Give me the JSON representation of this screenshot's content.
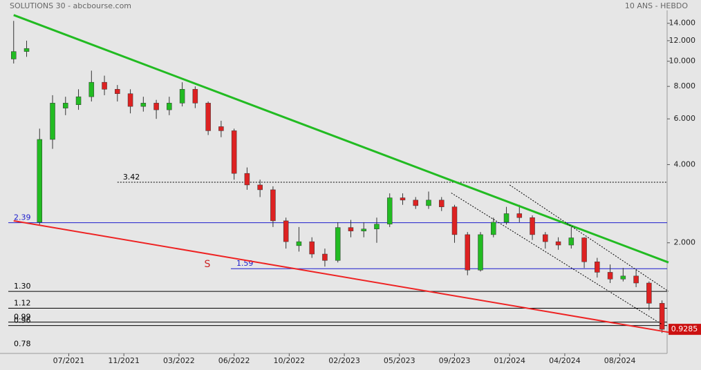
{
  "chart_data": {
    "type": "candlestick",
    "title": "SOLUTIONS 30 - abcbourse.com",
    "subtitle": "10 ANS - HEBDO",
    "log_scale": true,
    "ylim": [
      0.75,
      15.7
    ],
    "xlim": [
      -4,
      202
    ],
    "yticks": [
      {
        "value": 14,
        "label": "14.000"
      },
      {
        "value": 12,
        "label": "12.000"
      },
      {
        "value": 10,
        "label": "10.000"
      },
      {
        "value": 8,
        "label": "8.000"
      },
      {
        "value": 6,
        "label": "6.000"
      },
      {
        "value": 4,
        "label": "4.000"
      },
      {
        "value": 2,
        "label": "2.000"
      }
    ],
    "xticks": [
      {
        "value": 17,
        "label": "07/2021"
      },
      {
        "value": 34,
        "label": "11/2021"
      },
      {
        "value": 51,
        "label": "03/2022"
      },
      {
        "value": 68,
        "label": "06/2022"
      },
      {
        "value": 85,
        "label": "10/2022"
      },
      {
        "value": 102,
        "label": "02/2023"
      },
      {
        "value": 119,
        "label": "05/2023"
      },
      {
        "value": 136,
        "label": "09/2023"
      },
      {
        "value": 153,
        "label": "01/2024"
      },
      {
        "value": 170,
        "label": "04/2024"
      },
      {
        "value": 187,
        "label": "08/2024"
      }
    ],
    "x": [
      0,
      4,
      8,
      12,
      16,
      20,
      24,
      28,
      32,
      36,
      40,
      44,
      48,
      52,
      56,
      60,
      64,
      68,
      72,
      76,
      80,
      84,
      88,
      92,
      96,
      100,
      104,
      108,
      112,
      116,
      120,
      124,
      128,
      132,
      136,
      140,
      144,
      148,
      152,
      156,
      160,
      164,
      168,
      172,
      176,
      180,
      184,
      188,
      192,
      196,
      200
    ],
    "open": [
      10.2,
      10.9,
      2.4,
      5.0,
      6.6,
      6.8,
      7.3,
      8.3,
      7.8,
      7.5,
      6.7,
      6.9,
      6.5,
      6.9,
      7.8,
      6.9,
      5.6,
      5.4,
      3.7,
      3.34,
      3.2,
      2.43,
      1.95,
      2.02,
      1.81,
      1.71,
      2.29,
      2.22,
      2.26,
      2.36,
      2.98,
      2.92,
      2.78,
      2.92,
      2.75,
      2.15,
      1.57,
      2.15,
      2.4,
      2.59,
      2.5,
      2.15,
      2.02,
      1.96,
      2.09,
      1.69,
      1.54,
      1.45,
      1.49,
      1.4,
      1.17
    ],
    "high": [
      14.3,
      12.0,
      5.5,
      7.4,
      7.3,
      7.8,
      9.2,
      8.8,
      8.1,
      7.8,
      7.3,
      7.1,
      7.3,
      8.3,
      8.0,
      7.0,
      5.9,
      5.5,
      3.9,
      3.5,
      3.3,
      2.5,
      2.3,
      2.1,
      1.9,
      2.4,
      2.45,
      2.4,
      2.5,
      3.1,
      3.1,
      3.0,
      3.15,
      3.0,
      2.8,
      2.2,
      2.2,
      2.5,
      2.75,
      2.8,
      2.55,
      2.2,
      2.1,
      2.3,
      2.1,
      1.75,
      1.65,
      1.6,
      1.58,
      1.42,
      1.2
    ],
    "low": [
      9.8,
      10.4,
      2.35,
      4.6,
      6.2,
      6.5,
      7.0,
      7.4,
      7.0,
      6.3,
      6.4,
      6.0,
      6.2,
      6.7,
      6.6,
      5.2,
      5.1,
      3.5,
      3.2,
      3.0,
      2.3,
      1.9,
      1.85,
      1.75,
      1.62,
      1.68,
      2.1,
      2.1,
      2.0,
      2.3,
      2.8,
      2.7,
      2.7,
      2.65,
      2.0,
      1.5,
      1.55,
      2.1,
      2.35,
      2.4,
      2.05,
      1.9,
      1.88,
      1.9,
      1.6,
      1.47,
      1.4,
      1.42,
      1.35,
      1.1,
      0.9
    ],
    "close": [
      10.9,
      11.2,
      5.0,
      6.9,
      6.9,
      7.3,
      8.3,
      7.8,
      7.5,
      6.7,
      6.9,
      6.5,
      6.9,
      7.8,
      6.9,
      5.4,
      5.4,
      3.7,
      3.34,
      3.2,
      2.43,
      2.02,
      2.02,
      1.81,
      1.71,
      2.29,
      2.22,
      2.26,
      2.36,
      2.98,
      2.92,
      2.78,
      2.92,
      2.75,
      2.15,
      1.57,
      2.15,
      2.4,
      2.59,
      2.5,
      2.15,
      2.02,
      1.96,
      2.09,
      1.69,
      1.54,
      1.45,
      1.49,
      1.4,
      1.17,
      0.9285
    ],
    "up_color": "#22bb22",
    "down_color": "#dd2222",
    "levels": [
      {
        "value": 3.42,
        "label": "3.42",
        "color": "#000000",
        "style": "dotted",
        "from": 32
      },
      {
        "value": 2.39,
        "label": "2.39",
        "color": "#1a1acc",
        "style": "solid",
        "from": -4
      },
      {
        "value": 1.59,
        "label": "1.59",
        "color": "#1a1acc",
        "style": "solid",
        "from": 67
      },
      {
        "value": 1.3,
        "label": "1.30",
        "color": "#000000",
        "style": "solid",
        "from": -4
      },
      {
        "value": 1.12,
        "label": "1.12",
        "color": "#000000",
        "style": "solid",
        "from": -4
      },
      {
        "value": 0.99,
        "label": "0.99",
        "color": "#000000",
        "style": "solid",
        "from": -4
      },
      {
        "value": 0.96,
        "label": "0.96",
        "color": "#000000",
        "style": "solid",
        "from": -4
      },
      {
        "value": 0.78,
        "label": "0.78",
        "color": "#000000",
        "style": "none",
        "from": -4
      }
    ],
    "trendlines": [
      {
        "color": "#22bb22",
        "width": 3,
        "style": "solid",
        "start": [
          0,
          15.06
        ],
        "end": [
          202,
          1.68
        ]
      },
      {
        "color": "#ee2222",
        "width": 2,
        "style": "solid",
        "start": [
          0,
          2.43
        ],
        "end": [
          202,
          0.905
        ]
      },
      {
        "color": "#000000",
        "width": 1,
        "style": "dotted",
        "start": [
          153,
          3.34
        ],
        "end": [
          202,
          1.3
        ]
      },
      {
        "color": "#000000",
        "width": 1,
        "style": "dotted",
        "start": [
          135,
          3.11
        ],
        "end": [
          200,
          0.97
        ]
      }
    ],
    "annotation": "S",
    "annotation_color": "#cc2222",
    "last_price_color": "#cc1111"
  }
}
